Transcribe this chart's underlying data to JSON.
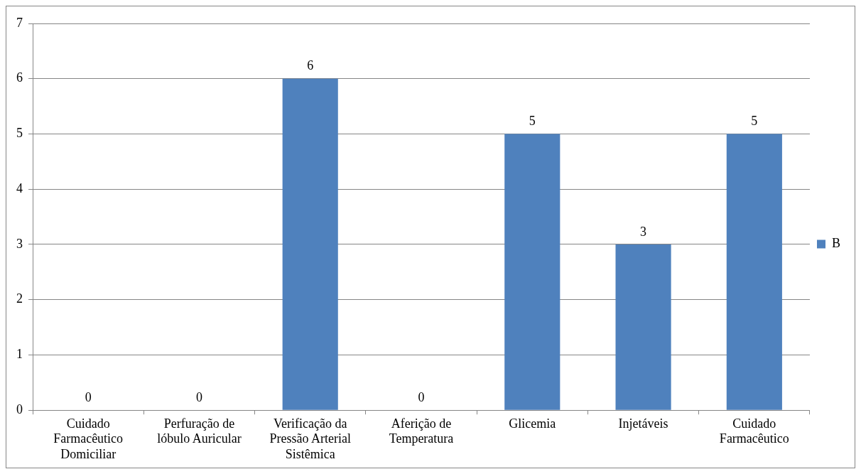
{
  "chart_data": {
    "type": "bar",
    "categories": [
      "Cuidado Farmacêutico Domiciliar",
      "Perfuração de lóbulo Auricular",
      "Verificação da Pressão Arterial Sistêmica",
      "Aferição de Temperatura",
      "Glicemia",
      "Injetáveis",
      "Cuidado Farmacêutico"
    ],
    "series": [
      {
        "name": "B",
        "color": "#4f81bd",
        "values": [
          0,
          0,
          6,
          0,
          5,
          3,
          5
        ]
      }
    ],
    "ylim": [
      0,
      7
    ],
    "yticks": [
      0,
      1,
      2,
      3,
      4,
      5,
      6,
      7
    ],
    "grid": "y",
    "legend": "right",
    "data_labels": true
  }
}
